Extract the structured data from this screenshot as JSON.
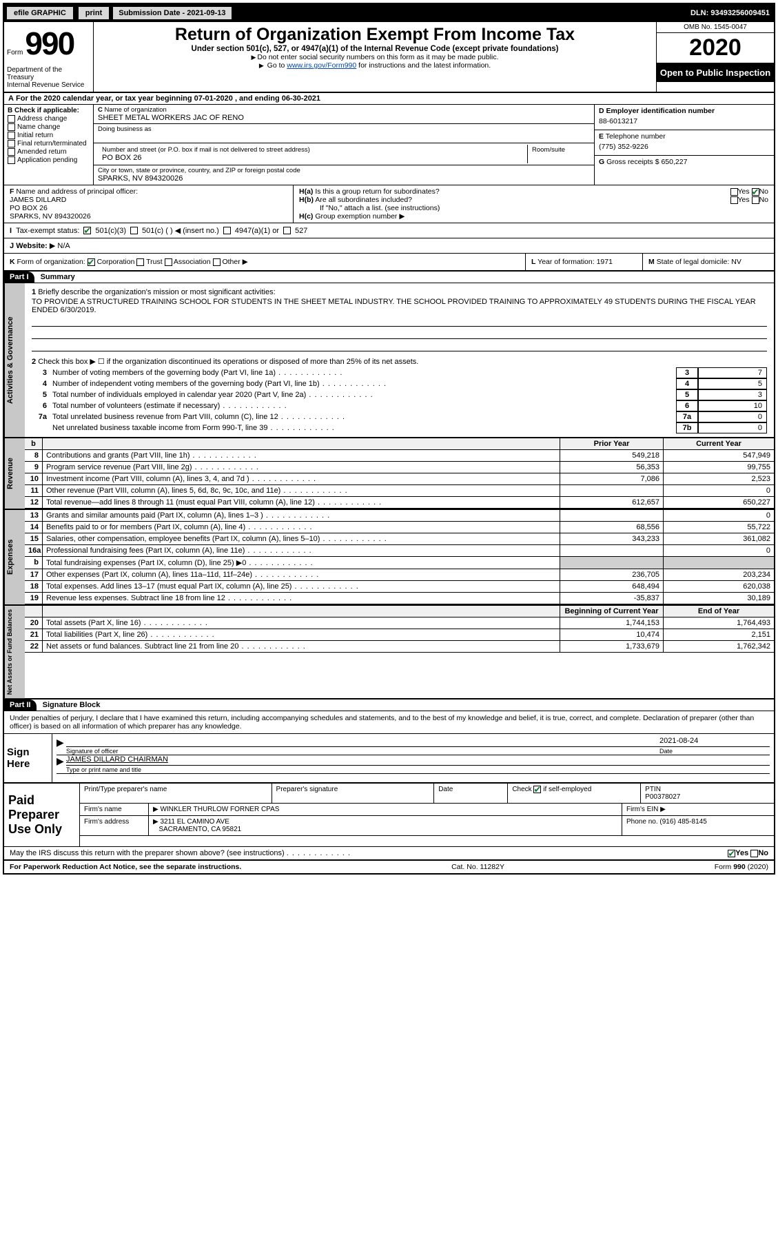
{
  "topbar": {
    "efile": "efile GRAPHIC",
    "print": "print",
    "subm_date_label": "Submission Date - 2021-09-13",
    "dln": "DLN: 93493256009451"
  },
  "header": {
    "form_label": "Form",
    "form_number": "990",
    "dept": "Department of the Treasury\nInternal Revenue Service",
    "title": "Return of Organization Exempt From Income Tax",
    "sub": "Under section 501(c), 527, or 4947(a)(1) of the Internal Revenue Code (except private foundations)",
    "note1": "Do not enter social security numbers on this form as it may be made public.",
    "note2_pre": "Go to ",
    "note2_link": "www.irs.gov/Form990",
    "note2_post": " for instructions and the latest information.",
    "omb": "OMB No. 1545-0047",
    "year": "2020",
    "open": "Open to Public Inspection"
  },
  "A": {
    "text": "For the 2020 calendar year, or tax year beginning 07-01-2020    , and ending 06-30-2021"
  },
  "B": {
    "title": "Check if applicable:",
    "opts": [
      "Address change",
      "Name change",
      "Initial return",
      "Final return/terminated",
      "Amended return",
      "Application pending"
    ]
  },
  "C": {
    "name_label": "Name of organization",
    "name": "SHEET METAL WORKERS JAC OF RENO",
    "dba_label": "Doing business as",
    "dba": "",
    "street_label": "Number and street (or P.O. box if mail is not delivered to street address)",
    "room_label": "Room/suite",
    "street": "PO BOX 26",
    "city_label": "City or town, state or province, country, and ZIP or foreign postal code",
    "city": "SPARKS, NV  894320026"
  },
  "D": {
    "label": "Employer identification number",
    "val": "88-6013217",
    "letter": "D"
  },
  "E": {
    "label": "Telephone number",
    "val": "(775) 352-9226",
    "letter": "E"
  },
  "G": {
    "label": "Gross receipts $",
    "val": "650,227",
    "letter": "G"
  },
  "F": {
    "label": "Name and address of principal officer:",
    "name": "JAMES DILLARD",
    "addr1": "PO BOX 26",
    "addr2": "SPARKS, NV  894320026"
  },
  "H": {
    "a": "Is this a group return for subordinates?",
    "b": "Are all subordinates included?",
    "b_note": "If \"No,\" attach a list. (see instructions)",
    "c": "Group exemption number"
  },
  "I": {
    "label": "Tax-exempt status:",
    "opts": [
      "501(c)(3)",
      "501(c) (  ) ◀ (insert no.)",
      "4947(a)(1) or",
      "527"
    ]
  },
  "J": {
    "label": "Website:",
    "val": "N/A"
  },
  "K": {
    "label": "Form of organization:",
    "opts": [
      "Corporation",
      "Trust",
      "Association",
      "Other"
    ]
  },
  "L": {
    "label": "Year of formation:",
    "val": "1971"
  },
  "M": {
    "label": "State of legal domicile:",
    "val": "NV"
  },
  "part1": {
    "hdr": "Part I",
    "title": "Summary",
    "q1_label": "Briefly describe the organization's mission or most significant activities:",
    "q1_val": "TO PROVIDE A STRUCTURED TRAINING SCHOOL FOR STUDENTS IN THE SHEET METAL INDUSTRY. THE SCHOOL PROVIDED TRAINING TO APPROXIMATELY 49 STUDENTS DURING THE FISCAL YEAR ENDED 6/30/2019.",
    "q2": "Check this box ▶ ☐ if the organization discontinued its operations or disposed of more than 25% of its net assets.",
    "rows": [
      {
        "n": "3",
        "t": "Number of voting members of the governing body (Part VI, line 1a)",
        "bx": "3",
        "v": "7"
      },
      {
        "n": "4",
        "t": "Number of independent voting members of the governing body (Part VI, line 1b)",
        "bx": "4",
        "v": "5"
      },
      {
        "n": "5",
        "t": "Total number of individuals employed in calendar year 2020 (Part V, line 2a)",
        "bx": "5",
        "v": "3"
      },
      {
        "n": "6",
        "t": "Total number of volunteers (estimate if necessary)",
        "bx": "6",
        "v": "10"
      },
      {
        "n": "7a",
        "t": "Total unrelated business revenue from Part VIII, column (C), line 12",
        "bx": "7a",
        "v": "0"
      },
      {
        "n": "",
        "t": "Net unrelated business taxable income from Form 990-T, line 39",
        "bx": "7b",
        "v": "0"
      }
    ],
    "vtab": "Activities & Governance"
  },
  "colhead": {
    "py": "Prior Year",
    "cy": "Current Year"
  },
  "revenue": {
    "vtab": "Revenue",
    "rows": [
      {
        "n": "8",
        "t": "Contributions and grants (Part VIII, line 1h)",
        "py": "549,218",
        "cy": "547,949"
      },
      {
        "n": "9",
        "t": "Program service revenue (Part VIII, line 2g)",
        "py": "56,353",
        "cy": "99,755"
      },
      {
        "n": "10",
        "t": "Investment income (Part VIII, column (A), lines 3, 4, and 7d )",
        "py": "7,086",
        "cy": "2,523"
      },
      {
        "n": "11",
        "t": "Other revenue (Part VIII, column (A), lines 5, 6d, 8c, 9c, 10c, and 11e)",
        "py": "",
        "cy": "0"
      },
      {
        "n": "12",
        "t": "Total revenue—add lines 8 through 11 (must equal Part VIII, column (A), line 12)",
        "py": "612,657",
        "cy": "650,227"
      }
    ]
  },
  "expenses": {
    "vtab": "Expenses",
    "rows": [
      {
        "n": "13",
        "t": "Grants and similar amounts paid (Part IX, column (A), lines 1–3 )",
        "py": "",
        "cy": "0"
      },
      {
        "n": "14",
        "t": "Benefits paid to or for members (Part IX, column (A), line 4)",
        "py": "68,556",
        "cy": "55,722"
      },
      {
        "n": "15",
        "t": "Salaries, other compensation, employee benefits (Part IX, column (A), lines 5–10)",
        "py": "343,233",
        "cy": "361,082"
      },
      {
        "n": "16a",
        "t": "Professional fundraising fees (Part IX, column (A), line 11e)",
        "py": "",
        "cy": "0"
      },
      {
        "n": "b",
        "t": "Total fundraising expenses (Part IX, column (D), line 25) ▶0",
        "py": "GRAY",
        "cy": "GRAY"
      },
      {
        "n": "17",
        "t": "Other expenses (Part IX, column (A), lines 11a–11d, 11f–24e)",
        "py": "236,705",
        "cy": "203,234"
      },
      {
        "n": "18",
        "t": "Total expenses. Add lines 13–17 (must equal Part IX, column (A), line 25)",
        "py": "648,494",
        "cy": "620,038"
      },
      {
        "n": "19",
        "t": "Revenue less expenses. Subtract line 18 from line 12",
        "py": "-35,837",
        "cy": "30,189"
      }
    ]
  },
  "netassets": {
    "vtab": "Net Assets or Fund Balances",
    "head_py": "Beginning of Current Year",
    "head_cy": "End of Year",
    "rows": [
      {
        "n": "20",
        "t": "Total assets (Part X, line 16)",
        "py": "1,744,153",
        "cy": "1,764,493"
      },
      {
        "n": "21",
        "t": "Total liabilities (Part X, line 26)",
        "py": "10,474",
        "cy": "2,151"
      },
      {
        "n": "22",
        "t": "Net assets or fund balances. Subtract line 21 from line 20",
        "py": "1,733,679",
        "cy": "1,762,342"
      }
    ]
  },
  "part2": {
    "hdr": "Part II",
    "title": "Signature Block",
    "decl": "Under penalties of perjury, I declare that I have examined this return, including accompanying schedules and statements, and to the best of my knowledge and belief, it is true, correct, and complete. Declaration of preparer (other than officer) is based on all information of which preparer has any knowledge."
  },
  "sign": {
    "lab": "Sign Here",
    "sig_label": "Signature of officer",
    "date_label": "Date",
    "date_val": "2021-08-24",
    "name": "JAMES DILLARD  CHAIRMAN",
    "name_label": "Type or print name and title"
  },
  "paid": {
    "lab": "Paid Preparer Use Only",
    "h1": "Print/Type preparer's name",
    "h2": "Preparer's signature",
    "h3": "Date",
    "h4_pre": "Check",
    "h4_post": "if self-employed",
    "h5": "PTIN",
    "ptin": "P00378027",
    "firm_label": "Firm's name",
    "firm": "WINKLER THURLOW FORNER CPAS",
    "ein_label": "Firm's EIN",
    "addr_label": "Firm's address",
    "addr1": "3211 EL CAMINO AVE",
    "addr2": "SACRAMENTO, CA  95821",
    "phone_label": "Phone no.",
    "phone": "(916) 485-8145",
    "discuss": "May the IRS discuss this return with the preparer shown above? (see instructions)"
  },
  "footer": {
    "pra": "For Paperwork Reduction Act Notice, see the separate instructions.",
    "cat": "Cat. No. 11282Y",
    "form": "Form 990 (2020)"
  },
  "colors": {
    "black": "#000000",
    "white": "#ffffff",
    "link": "#0645ad",
    "check_green": "#0a7a2a",
    "vtab_bg": "#c8c8c8",
    "gray": "#d0d0d0"
  }
}
